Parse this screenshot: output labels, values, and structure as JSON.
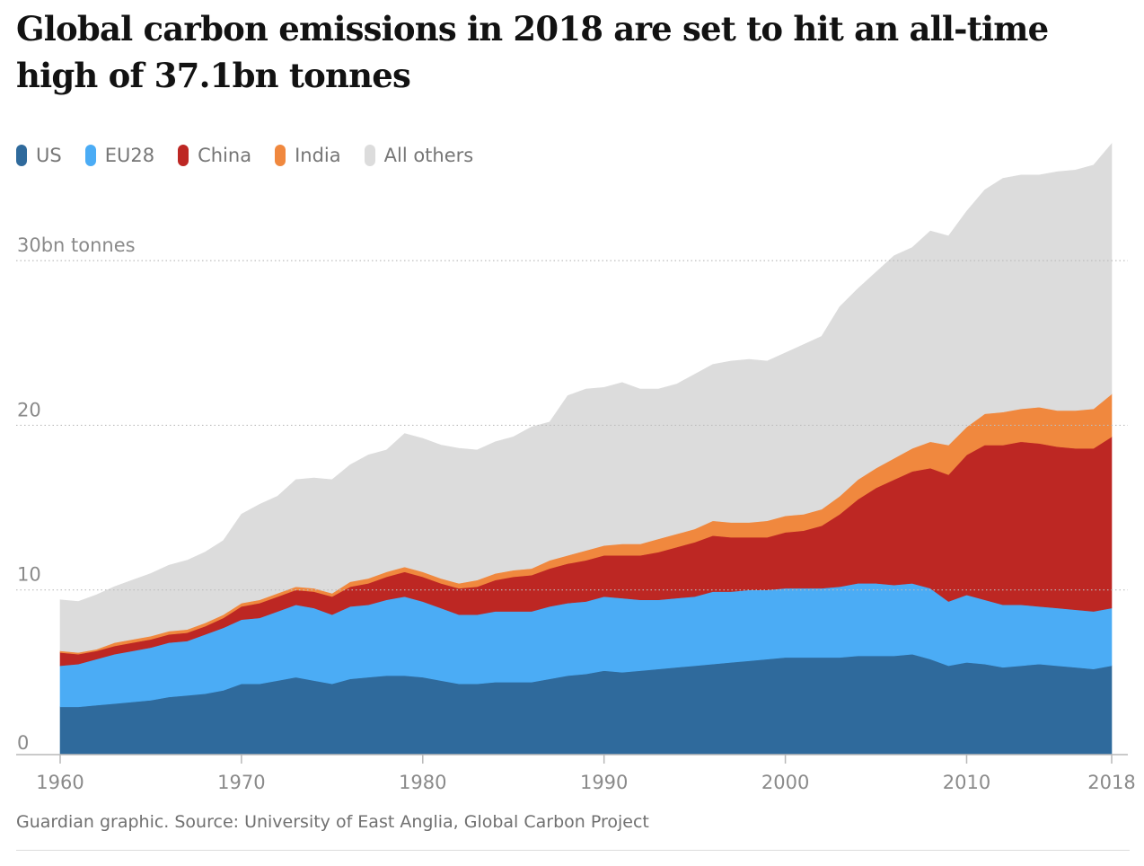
{
  "header": {
    "title": "Global carbon emissions in 2018 are set to hit an all-time high of 37.1bn tonnes"
  },
  "footer": {
    "source": "Guardian graphic. Source: University of East Anglia, Global Carbon Project"
  },
  "chart_data": {
    "type": "area",
    "stacked": true,
    "title": "Global carbon emissions in 2018 are set to hit an all-time high of 37.1bn tonnes",
    "xlabel": "",
    "ylabel": "",
    "ylim": [
      0,
      37.1
    ],
    "xlim": [
      1960,
      2018
    ],
    "grid": true,
    "legend_position": "top-left",
    "x_ticks": [
      1960,
      1970,
      1980,
      1990,
      2000,
      2010,
      2018
    ],
    "y_ticks": [
      {
        "value": 0,
        "label": "0"
      },
      {
        "value": 10,
        "label": "10"
      },
      {
        "value": 20,
        "label": "20"
      },
      {
        "value": 30,
        "label": "30bn tonnes"
      }
    ],
    "x": [
      1960,
      1961,
      1962,
      1963,
      1964,
      1965,
      1966,
      1967,
      1968,
      1969,
      1970,
      1971,
      1972,
      1973,
      1974,
      1975,
      1976,
      1977,
      1978,
      1979,
      1980,
      1981,
      1982,
      1983,
      1984,
      1985,
      1986,
      1987,
      1988,
      1989,
      1990,
      1991,
      1992,
      1993,
      1994,
      1995,
      1996,
      1997,
      1998,
      1999,
      2000,
      2001,
      2002,
      2003,
      2004,
      2005,
      2006,
      2007,
      2008,
      2009,
      2010,
      2011,
      2012,
      2013,
      2014,
      2015,
      2016,
      2017,
      2018
    ],
    "series": [
      {
        "name": "US",
        "color": "#2f6a9c",
        "values": [
          2.9,
          2.9,
          3.0,
          3.1,
          3.2,
          3.3,
          3.5,
          3.6,
          3.7,
          3.9,
          4.3,
          4.3,
          4.5,
          4.7,
          4.5,
          4.3,
          4.6,
          4.7,
          4.8,
          4.8,
          4.7,
          4.5,
          4.3,
          4.3,
          4.4,
          4.4,
          4.4,
          4.6,
          4.8,
          4.9,
          5.1,
          5.0,
          5.1,
          5.2,
          5.3,
          5.4,
          5.5,
          5.6,
          5.7,
          5.8,
          5.9,
          5.9,
          5.9,
          5.9,
          6.0,
          6.0,
          6.0,
          6.1,
          5.8,
          5.4,
          5.6,
          5.5,
          5.3,
          5.4,
          5.5,
          5.4,
          5.3,
          5.2,
          5.4
        ]
      },
      {
        "name": "EU28",
        "color": "#4bacf5",
        "values": [
          2.5,
          2.6,
          2.8,
          3.0,
          3.1,
          3.2,
          3.3,
          3.3,
          3.6,
          3.8,
          3.9,
          4.0,
          4.2,
          4.4,
          4.4,
          4.2,
          4.4,
          4.4,
          4.6,
          4.8,
          4.6,
          4.4,
          4.2,
          4.2,
          4.3,
          4.3,
          4.3,
          4.4,
          4.4,
          4.4,
          4.5,
          4.5,
          4.3,
          4.2,
          4.2,
          4.2,
          4.4,
          4.3,
          4.3,
          4.2,
          4.2,
          4.2,
          4.2,
          4.3,
          4.4,
          4.4,
          4.3,
          4.3,
          4.3,
          3.9,
          4.1,
          3.9,
          3.8,
          3.7,
          3.5,
          3.5,
          3.5,
          3.5,
          3.5
        ]
      },
      {
        "name": "China",
        "color": "#bd2723",
        "values": [
          0.8,
          0.6,
          0.5,
          0.5,
          0.5,
          0.5,
          0.5,
          0.5,
          0.5,
          0.6,
          0.8,
          0.9,
          0.9,
          0.9,
          1.0,
          1.1,
          1.2,
          1.3,
          1.4,
          1.5,
          1.5,
          1.5,
          1.6,
          1.7,
          1.9,
          2.1,
          2.2,
          2.3,
          2.4,
          2.5,
          2.5,
          2.6,
          2.7,
          2.9,
          3.1,
          3.3,
          3.4,
          3.3,
          3.2,
          3.2,
          3.4,
          3.5,
          3.8,
          4.4,
          5.1,
          5.8,
          6.4,
          6.8,
          7.3,
          7.7,
          8.5,
          9.4,
          9.7,
          9.9,
          9.9,
          9.8,
          9.8,
          9.9,
          10.4
        ]
      },
      {
        "name": "India",
        "color": "#f0883e",
        "values": [
          0.1,
          0.1,
          0.1,
          0.2,
          0.2,
          0.2,
          0.2,
          0.2,
          0.2,
          0.2,
          0.2,
          0.2,
          0.2,
          0.2,
          0.2,
          0.2,
          0.3,
          0.3,
          0.3,
          0.3,
          0.3,
          0.3,
          0.3,
          0.4,
          0.4,
          0.4,
          0.4,
          0.5,
          0.5,
          0.6,
          0.6,
          0.7,
          0.7,
          0.8,
          0.8,
          0.8,
          0.9,
          0.9,
          0.9,
          1.0,
          1.0,
          1.0,
          1.0,
          1.1,
          1.2,
          1.2,
          1.3,
          1.4,
          1.6,
          1.8,
          1.7,
          1.9,
          2.0,
          2.0,
          2.2,
          2.2,
          2.3,
          2.4,
          2.6
        ]
      },
      {
        "name": "All others",
        "color": "#dcdcdc",
        "values": [
          3.1,
          3.1,
          3.3,
          3.4,
          3.6,
          3.8,
          4.0,
          4.2,
          4.3,
          4.5,
          5.4,
          5.8,
          5.9,
          6.5,
          6.7,
          6.9,
          7.1,
          7.5,
          7.4,
          8.1,
          8.1,
          8.1,
          8.2,
          7.9,
          8.0,
          8.1,
          8.6,
          8.4,
          9.7,
          9.8,
          9.6,
          9.8,
          9.4,
          9.1,
          9.1,
          9.4,
          9.5,
          9.8,
          9.9,
          9.7,
          9.9,
          10.3,
          10.5,
          11.5,
          11.6,
          11.9,
          12.3,
          12.2,
          12.8,
          12.7,
          13.1,
          13.6,
          14.2,
          14.2,
          14.1,
          14.5,
          14.6,
          14.8,
          15.2
        ]
      }
    ]
  }
}
